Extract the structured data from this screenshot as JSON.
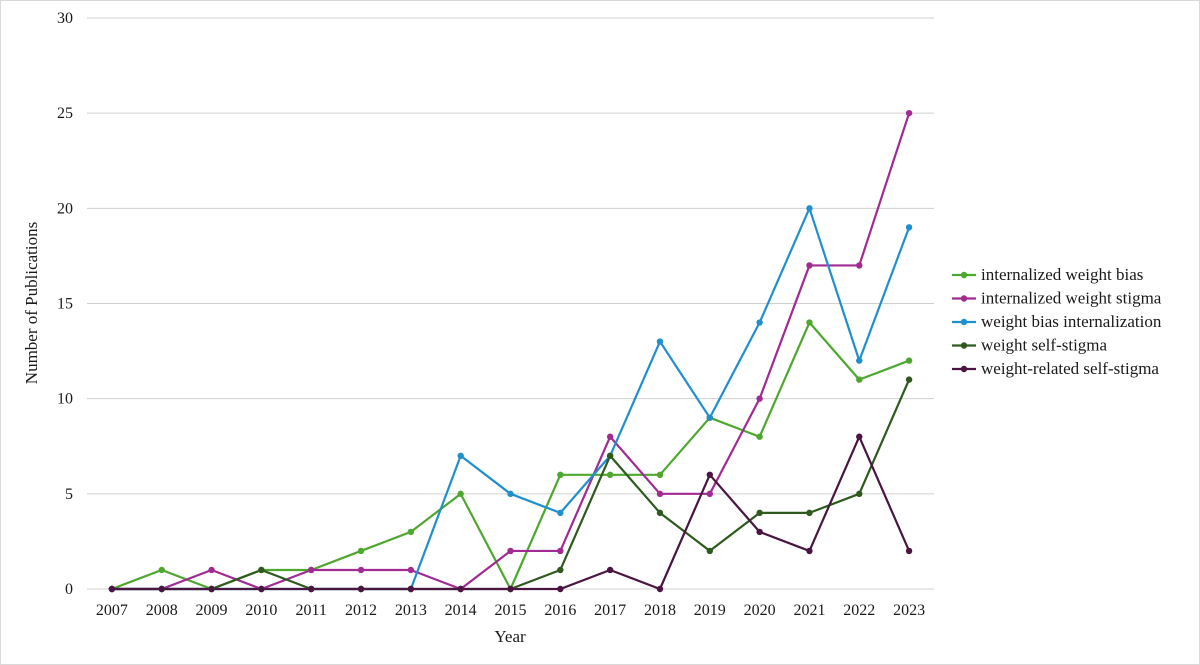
{
  "chart_data": {
    "type": "line",
    "xlabel": "Year",
    "ylabel": "Number of Publications",
    "ylim": [
      0,
      30
    ],
    "yticks": [
      0,
      5,
      10,
      15,
      20,
      25,
      30
    ],
    "grid": "horizontal",
    "legend_position": "right",
    "x": [
      "2007",
      "2008",
      "2009",
      "2010",
      "2011",
      "2012",
      "2013",
      "2014",
      "2015",
      "2016",
      "2017",
      "2018",
      "2019",
      "2020",
      "2021",
      "2022",
      "2023"
    ],
    "series": [
      {
        "name": "internalized weight bias",
        "color": "#4ea72e",
        "values": [
          0,
          1,
          0,
          1,
          1,
          2,
          3,
          5,
          0,
          6,
          6,
          6,
          9,
          8,
          14,
          11,
          12
        ]
      },
      {
        "name": "internalized weight stigma",
        "color": "#a02b93",
        "values": [
          0,
          0,
          1,
          0,
          1,
          1,
          1,
          0,
          2,
          2,
          8,
          5,
          5,
          10,
          17,
          17,
          25
        ]
      },
      {
        "name": "weight bias internalization",
        "color": "#1f8fcd",
        "values": [
          0,
          0,
          0,
          0,
          0,
          0,
          0,
          7,
          5,
          4,
          7,
          13,
          9,
          14,
          20,
          12,
          19
        ]
      },
      {
        "name": "weight self-stigma",
        "color": "#2f5a1e",
        "values": [
          0,
          0,
          0,
          1,
          0,
          0,
          0,
          0,
          0,
          1,
          7,
          4,
          2,
          4,
          4,
          5,
          11
        ]
      },
      {
        "name": "weight-related self-stigma",
        "color": "#4a1540",
        "values": [
          0,
          0,
          0,
          0,
          0,
          0,
          0,
          0,
          0,
          0,
          1,
          0,
          6,
          3,
          2,
          8,
          2
        ]
      }
    ]
  }
}
